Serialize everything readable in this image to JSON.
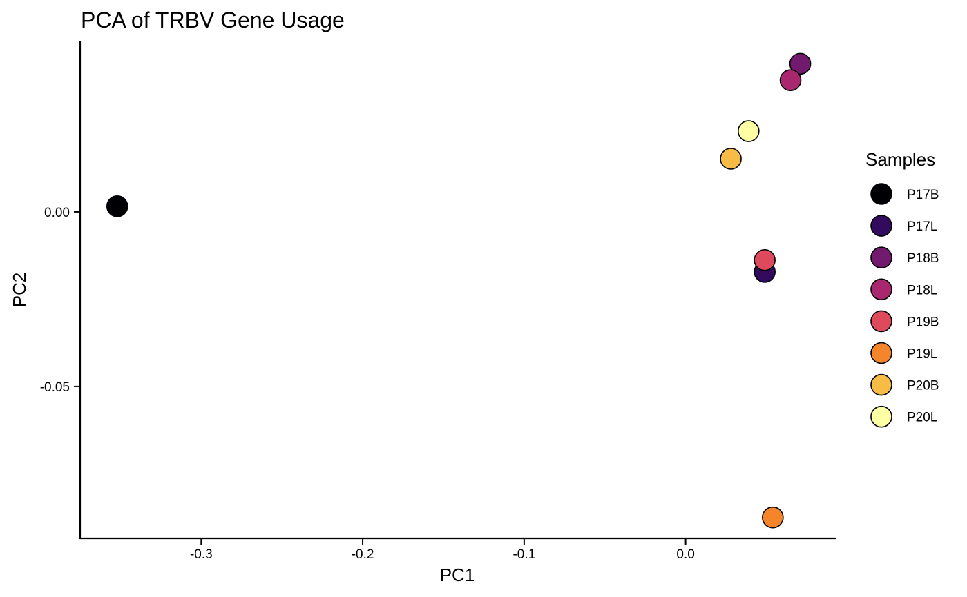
{
  "chart_data": {
    "type": "scatter",
    "title": "PCA of TRBV Gene Usage",
    "xlabel": "PC1",
    "ylabel": "PC2",
    "xlim": [
      -0.375,
      0.093
    ],
    "ylim": [
      -0.0935,
      0.0488
    ],
    "x_ticks": [
      {
        "value": -0.3,
        "label": "-0.3"
      },
      {
        "value": -0.2,
        "label": "-0.2"
      },
      {
        "value": -0.1,
        "label": "-0.1"
      },
      {
        "value": 0.0,
        "label": "0.0"
      }
    ],
    "y_ticks": [
      {
        "value": 0.0,
        "label": "0.00"
      },
      {
        "value": -0.05,
        "label": "-0.05"
      }
    ],
    "grid": false,
    "legend": {
      "title": "Samples",
      "placement": "right"
    },
    "series": [
      {
        "name": "P17B",
        "color": "#000004",
        "points": [
          {
            "x": -0.352,
            "y": 0.0016
          }
        ]
      },
      {
        "name": "P17L",
        "color": "#320A5E",
        "points": [
          {
            "x": 0.049,
            "y": -0.0172
          }
        ]
      },
      {
        "name": "P18B",
        "color": "#721A6E",
        "points": [
          {
            "x": 0.071,
            "y": 0.0424
          }
        ]
      },
      {
        "name": "P18L",
        "color": "#A8276E",
        "points": [
          {
            "x": 0.065,
            "y": 0.0377
          }
        ]
      },
      {
        "name": "P19B",
        "color": "#DE4A5C",
        "points": [
          {
            "x": 0.049,
            "y": -0.0138
          }
        ]
      },
      {
        "name": "P19L",
        "color": "#F5852A",
        "points": [
          {
            "x": 0.054,
            "y": -0.0875
          }
        ]
      },
      {
        "name": "P20B",
        "color": "#F7BC45",
        "points": [
          {
            "x": 0.028,
            "y": 0.0152
          }
        ]
      },
      {
        "name": "P20L",
        "color": "#FCFFA4",
        "points": [
          {
            "x": 0.039,
            "y": 0.0231
          }
        ]
      }
    ]
  }
}
